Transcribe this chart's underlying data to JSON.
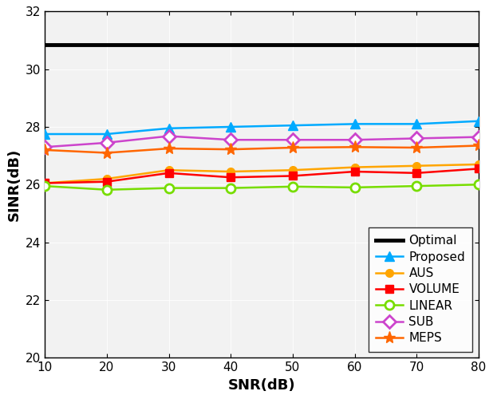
{
  "snr": [
    10,
    20,
    30,
    40,
    50,
    60,
    70,
    80
  ],
  "optimal_value": 30.85,
  "proposed": [
    27.75,
    27.75,
    27.95,
    28.0,
    28.05,
    28.1,
    28.1,
    28.2
  ],
  "aus": [
    26.05,
    26.2,
    26.5,
    26.45,
    26.5,
    26.6,
    26.65,
    26.7
  ],
  "volume": [
    26.05,
    26.1,
    26.4,
    26.25,
    26.3,
    26.45,
    26.4,
    26.55
  ],
  "linear": [
    25.95,
    25.82,
    25.88,
    25.88,
    25.93,
    25.9,
    25.95,
    26.0
  ],
  "sub": [
    27.3,
    27.45,
    27.68,
    27.55,
    27.55,
    27.55,
    27.6,
    27.65
  ],
  "meps": [
    27.2,
    27.1,
    27.25,
    27.22,
    27.28,
    27.3,
    27.28,
    27.35
  ],
  "colors": {
    "optimal": "#000000",
    "proposed": "#00AAFF",
    "aus": "#FFA500",
    "volume": "#FF0000",
    "linear": "#77DD00",
    "sub": "#CC44CC",
    "meps": "#FF6600"
  },
  "xlabel": "SNR(dB)",
  "ylabel": "SINR(dB)",
  "ylim": [
    20,
    32
  ],
  "xlim": [
    10,
    80
  ],
  "yticks": [
    20,
    22,
    24,
    26,
    28,
    30,
    32
  ],
  "xticks": [
    10,
    20,
    30,
    40,
    50,
    60,
    70,
    80
  ],
  "plot_bg": "#F2F2F2"
}
